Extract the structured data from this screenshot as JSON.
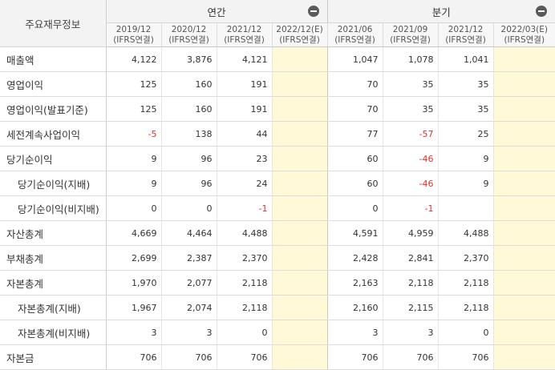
{
  "header": {
    "corner_label": "주요재무정보",
    "annual_label": "연간",
    "quarter_label": "분기"
  },
  "periods": [
    {
      "date": "2019/12",
      "basis": "(IFRS연결)"
    },
    {
      "date": "2020/12",
      "basis": "(IFRS연결)"
    },
    {
      "date": "2021/12",
      "basis": "(IFRS연결)"
    },
    {
      "date": "2022/12(E)",
      "basis": "(IFRS연결)"
    },
    {
      "date": "2021/06",
      "basis": "(IFRS연결)"
    },
    {
      "date": "2021/09",
      "basis": "(IFRS연결)"
    },
    {
      "date": "2021/12",
      "basis": "(IFRS연결)"
    },
    {
      "date": "2022/03(E)",
      "basis": "(IFRS연결)"
    }
  ],
  "rows": [
    {
      "label": "매출액",
      "values": [
        "4,122",
        "3,876",
        "4,121",
        "",
        "1,047",
        "1,078",
        "1,041",
        ""
      ]
    },
    {
      "label": "영업이익",
      "values": [
        "125",
        "160",
        "191",
        "",
        "70",
        "35",
        "35",
        ""
      ]
    },
    {
      "label": "영업이익(발표기준)",
      "values": [
        "125",
        "160",
        "191",
        "",
        "70",
        "35",
        "35",
        ""
      ]
    },
    {
      "label": "세전계속사업이익",
      "values": [
        "-5",
        "138",
        "44",
        "",
        "77",
        "-57",
        "25",
        ""
      ]
    },
    {
      "label": "당기순이익",
      "values": [
        "9",
        "96",
        "23",
        "",
        "60",
        "-46",
        "9",
        ""
      ]
    },
    {
      "label": "당기순이익(지배)",
      "values": [
        "9",
        "96",
        "24",
        "",
        "60",
        "-46",
        "9",
        ""
      ]
    },
    {
      "label": "당기순이익(비지배)",
      "values": [
        "0",
        "0",
        "-1",
        "",
        "0",
        "-1",
        "",
        ""
      ]
    },
    {
      "label": "자산총계",
      "values": [
        "4,669",
        "4,464",
        "4,488",
        "",
        "4,591",
        "4,959",
        "4,488",
        ""
      ]
    },
    {
      "label": "부채총계",
      "values": [
        "2,699",
        "2,387",
        "2,370",
        "",
        "2,428",
        "2,841",
        "2,370",
        ""
      ]
    },
    {
      "label": "자본총계",
      "values": [
        "1,970",
        "2,077",
        "2,118",
        "",
        "2,163",
        "2,118",
        "2,118",
        ""
      ]
    },
    {
      "label": "자본총계(지배)",
      "values": [
        "1,967",
        "2,074",
        "2,118",
        "",
        "2,160",
        "2,115",
        "2,118",
        ""
      ]
    },
    {
      "label": "자본총계(비지배)",
      "values": [
        "3",
        "3",
        "0",
        "",
        "3",
        "3",
        "0",
        ""
      ]
    },
    {
      "label": "자본금",
      "values": [
        "706",
        "706",
        "706",
        "",
        "706",
        "706",
        "706",
        ""
      ]
    }
  ],
  "colors": {
    "estimate_fill": "#fff9d8",
    "negative": "#e53030",
    "header_bg": "#f3f3f3"
  }
}
